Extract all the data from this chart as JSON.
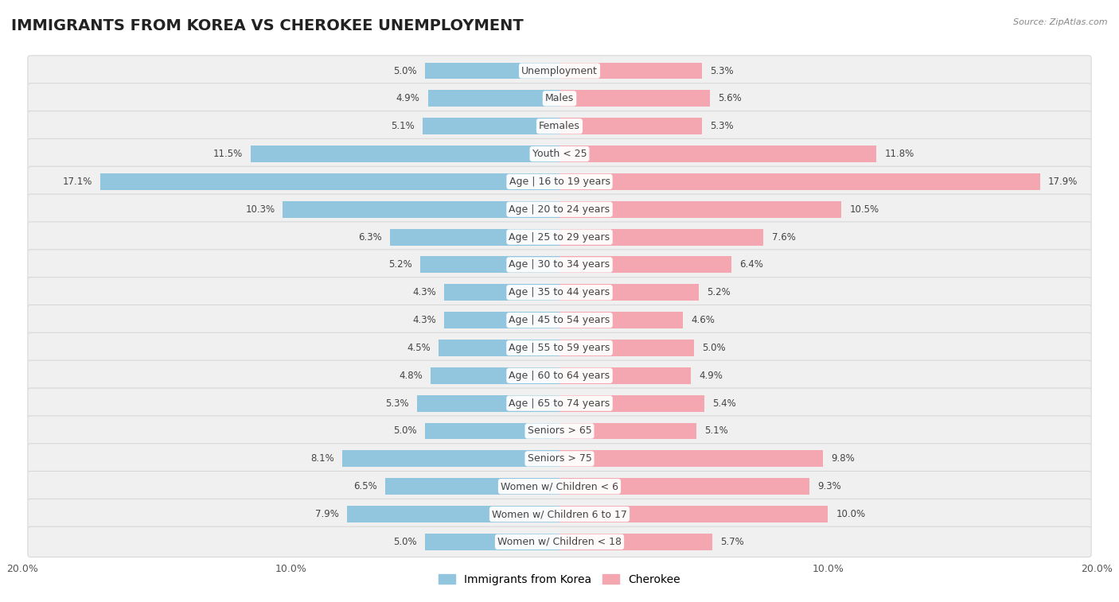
{
  "title": "IMMIGRANTS FROM KOREA VS CHEROKEE UNEMPLOYMENT",
  "source": "Source: ZipAtlas.com",
  "categories": [
    "Unemployment",
    "Males",
    "Females",
    "Youth < 25",
    "Age | 16 to 19 years",
    "Age | 20 to 24 years",
    "Age | 25 to 29 years",
    "Age | 30 to 34 years",
    "Age | 35 to 44 years",
    "Age | 45 to 54 years",
    "Age | 55 to 59 years",
    "Age | 60 to 64 years",
    "Age | 65 to 74 years",
    "Seniors > 65",
    "Seniors > 75",
    "Women w/ Children < 6",
    "Women w/ Children 6 to 17",
    "Women w/ Children < 18"
  ],
  "korea_values": [
    5.0,
    4.9,
    5.1,
    11.5,
    17.1,
    10.3,
    6.3,
    5.2,
    4.3,
    4.3,
    4.5,
    4.8,
    5.3,
    5.0,
    8.1,
    6.5,
    7.9,
    5.0
  ],
  "cherokee_values": [
    5.3,
    5.6,
    5.3,
    11.8,
    17.9,
    10.5,
    7.6,
    6.4,
    5.2,
    4.6,
    5.0,
    4.9,
    5.4,
    5.1,
    9.8,
    9.3,
    10.0,
    5.7
  ],
  "korea_color": "#92c5de",
  "cherokee_color": "#f4a7b0",
  "bar_height": 0.6,
  "xlim": 20.0,
  "background_color": "#ffffff",
  "row_bg": "#f0f0f0",
  "row_border": "#d8d8d8",
  "title_fontsize": 14,
  "label_fontsize": 9,
  "value_fontsize": 8.5,
  "legend_fontsize": 10,
  "source_fontsize": 8
}
